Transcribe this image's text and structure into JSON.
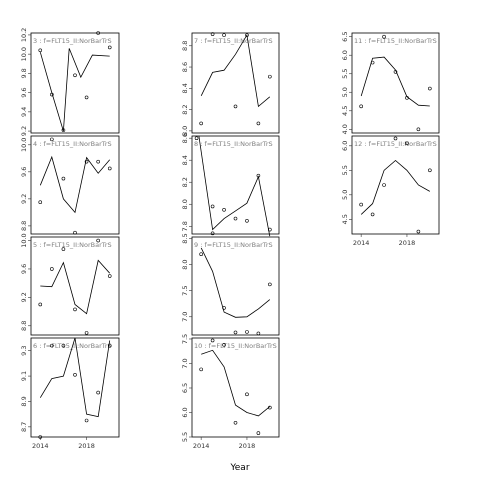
{
  "chart_data": {
    "type": "line",
    "xlabel": "Year",
    "x": [
      2014,
      2015,
      2016,
      2017,
      2018,
      2019,
      2020
    ],
    "xticks": [
      2014,
      2018
    ],
    "panels": [
      {
        "id": "3",
        "title": "3 : f=FLT15_II:NorBarTrS",
        "ylim": [
          9.18,
          10.22
        ],
        "yticks": [
          9.2,
          9.4,
          9.6,
          9.8,
          10.0,
          10.2
        ],
        "points": [
          [
            2014,
            10.04
          ],
          [
            2015,
            9.58
          ],
          [
            2016,
            9.21
          ],
          [
            2017,
            9.78
          ],
          [
            2018,
            9.55
          ],
          [
            2019,
            10.22
          ],
          [
            2020,
            10.07
          ]
        ],
        "line": [
          [
            2014,
            10.02
          ],
          [
            2015,
            9.6
          ],
          [
            2016,
            9.2
          ],
          [
            2016.5,
            10.06
          ],
          [
            2017.5,
            9.76
          ],
          [
            2018.5,
            9.99
          ],
          [
            2020,
            9.98
          ]
        ]
      },
      {
        "id": "4",
        "title": "4 : f=FLT15_II:NorBarTrS",
        "ylim": [
          8.68,
          10.13
        ],
        "yticks": [
          8.8,
          9.2,
          9.6,
          10.0
        ],
        "points": [
          [
            2014,
            9.15
          ],
          [
            2015,
            10.08
          ],
          [
            2016,
            9.5
          ],
          [
            2017,
            8.7
          ],
          [
            2018,
            9.75
          ],
          [
            2019,
            9.75
          ],
          [
            2020,
            9.65
          ]
        ],
        "line": [
          [
            2014,
            9.4
          ],
          [
            2015,
            9.82
          ],
          [
            2016,
            9.2
          ],
          [
            2017,
            9.0
          ],
          [
            2018,
            9.81
          ],
          [
            2019,
            9.58
          ],
          [
            2020,
            9.78
          ]
        ]
      },
      {
        "id": "5",
        "title": "5 : f=FLT15_II:NorBarTrS",
        "ylim": [
          8.67,
          10.05
        ],
        "yticks": [
          8.8,
          9.2,
          9.6,
          10.0
        ],
        "points": [
          [
            2014,
            9.1
          ],
          [
            2015,
            9.6
          ],
          [
            2016,
            9.88
          ],
          [
            2017,
            9.03
          ],
          [
            2018,
            8.7
          ],
          [
            2019,
            10.0
          ],
          [
            2020,
            9.5
          ]
        ],
        "line": [
          [
            2014,
            9.36
          ],
          [
            2015,
            9.35
          ],
          [
            2016,
            9.69
          ],
          [
            2017,
            9.1
          ],
          [
            2018,
            8.97
          ],
          [
            2019,
            9.72
          ],
          [
            2020,
            9.54
          ]
        ]
      },
      {
        "id": "6",
        "title": "6 : f=FLT15_II:NorBarTrS",
        "ylim": [
          8.62,
          9.4
        ],
        "yticks": [
          8.7,
          8.9,
          9.1,
          9.3
        ],
        "points": [
          [
            2014,
            8.62
          ],
          [
            2015,
            9.34
          ],
          [
            2016,
            9.34
          ],
          [
            2017,
            9.11
          ],
          [
            2018,
            8.75
          ],
          [
            2019,
            8.97
          ],
          [
            2020,
            9.34
          ]
        ],
        "line": [
          [
            2014,
            8.93
          ],
          [
            2015,
            9.08
          ],
          [
            2016,
            9.1
          ],
          [
            2017,
            9.4
          ],
          [
            2018,
            8.8
          ],
          [
            2019,
            8.78
          ],
          [
            2020,
            9.38
          ]
        ]
      },
      {
        "id": "7",
        "title": "7 : f=FLT15_II:NorBarTrS",
        "ylim": [
          7.98,
          8.92
        ],
        "yticks": [
          8.0,
          8.2,
          8.4,
          8.6,
          8.8
        ],
        "points": [
          [
            2014,
            8.07
          ],
          [
            2015,
            8.91
          ],
          [
            2016,
            8.9
          ],
          [
            2017,
            8.23
          ],
          [
            2018,
            8.9
          ],
          [
            2019,
            8.07
          ],
          [
            2020,
            8.51
          ]
        ],
        "line": [
          [
            2014,
            8.33
          ],
          [
            2015,
            8.55
          ],
          [
            2016,
            8.57
          ],
          [
            2017,
            8.72
          ],
          [
            2018,
            8.9
          ],
          [
            2019,
            8.23
          ],
          [
            2020,
            8.32
          ]
        ]
      },
      {
        "id": "8",
        "title": "8 : f=FLT15_II:NorBarTrS",
        "ylim": [
          7.73,
          8.62
        ],
        "yticks": [
          7.8,
          8.0,
          8.2,
          8.4,
          8.6
        ],
        "points": [
          [
            2013.6,
            8.6
          ],
          [
            2015,
            7.98
          ],
          [
            2016,
            7.95
          ],
          [
            2017,
            7.87
          ],
          [
            2018,
            7.85
          ],
          [
            2019,
            8.26
          ],
          [
            2020,
            7.77
          ]
        ],
        "line": [
          [
            2013.8,
            8.62
          ],
          [
            2015,
            7.77
          ],
          [
            2016,
            7.87
          ],
          [
            2017,
            7.94
          ],
          [
            2018,
            8.01
          ],
          [
            2019,
            8.25
          ],
          [
            2020,
            7.71
          ]
        ]
      },
      {
        "id": "9",
        "title": "9 : f=FLT15_II:NorBarTrS",
        "ylim": [
          6.65,
          8.53
        ],
        "yticks": [
          7.0,
          7.5,
          8.0,
          8.5
        ],
        "points": [
          [
            2014,
            8.2
          ],
          [
            2015,
            8.6
          ],
          [
            2016,
            7.17
          ],
          [
            2017,
            6.7
          ],
          [
            2018,
            6.71
          ],
          [
            2019,
            6.68
          ],
          [
            2020,
            7.62
          ]
        ],
        "line": [
          [
            2014,
            8.32
          ],
          [
            2015,
            7.87
          ],
          [
            2016,
            7.09
          ],
          [
            2017,
            6.99
          ],
          [
            2018,
            7.0
          ],
          [
            2019,
            7.15
          ],
          [
            2020,
            7.33
          ]
        ]
      },
      {
        "id": "10",
        "title": "10 : f=FLT15_II:NorBarTrS",
        "ylim": [
          5.5,
          7.52
        ],
        "yticks": [
          5.5,
          6.0,
          6.5,
          7.0,
          7.5
        ],
        "points": [
          [
            2014,
            6.88
          ],
          [
            2015,
            7.47
          ],
          [
            2016,
            7.38
          ],
          [
            2017,
            5.79
          ],
          [
            2018,
            6.37
          ],
          [
            2019,
            5.58
          ],
          [
            2020,
            6.1
          ]
        ],
        "line": [
          [
            2014,
            7.19
          ],
          [
            2015,
            7.27
          ],
          [
            2016,
            6.93
          ],
          [
            2017,
            6.15
          ],
          [
            2018,
            6.0
          ],
          [
            2019,
            5.93
          ],
          [
            2020,
            6.12
          ]
        ]
      },
      {
        "id": "11",
        "title": "11 : f=FLT15_II:NorBarTrS",
        "ylim": [
          3.9,
          6.6
        ],
        "yticks": [
          4.0,
          4.5,
          5.0,
          5.5,
          6.0,
          6.5
        ],
        "points": [
          [
            2014,
            4.62
          ],
          [
            2015,
            5.8
          ],
          [
            2016,
            6.5
          ],
          [
            2017,
            5.55
          ],
          [
            2018,
            4.85
          ],
          [
            2019,
            4.0
          ],
          [
            2020,
            5.1
          ]
        ],
        "line": [
          [
            2014,
            4.9
          ],
          [
            2015,
            5.92
          ],
          [
            2016,
            5.95
          ],
          [
            2017,
            5.6
          ],
          [
            2018,
            4.88
          ],
          [
            2019,
            4.65
          ],
          [
            2020,
            4.63
          ]
        ]
      },
      {
        "id": "12",
        "title": "12 : f=FLT15_II:NorBarTrS",
        "ylim": [
          4.2,
          6.2
        ],
        "yticks": [
          4.5,
          5.0,
          5.5,
          6.0
        ],
        "points": [
          [
            2014,
            4.8
          ],
          [
            2015,
            4.6
          ],
          [
            2016,
            5.2
          ],
          [
            2017,
            6.15
          ],
          [
            2018,
            6.05
          ],
          [
            2019,
            4.25
          ],
          [
            2020,
            5.5
          ]
        ],
        "line": [
          [
            2014,
            4.6
          ],
          [
            2015,
            4.82
          ],
          [
            2016,
            5.5
          ],
          [
            2017,
            5.7
          ],
          [
            2018,
            5.5
          ],
          [
            2019,
            5.2
          ],
          [
            2020,
            5.07
          ]
        ]
      }
    ]
  }
}
